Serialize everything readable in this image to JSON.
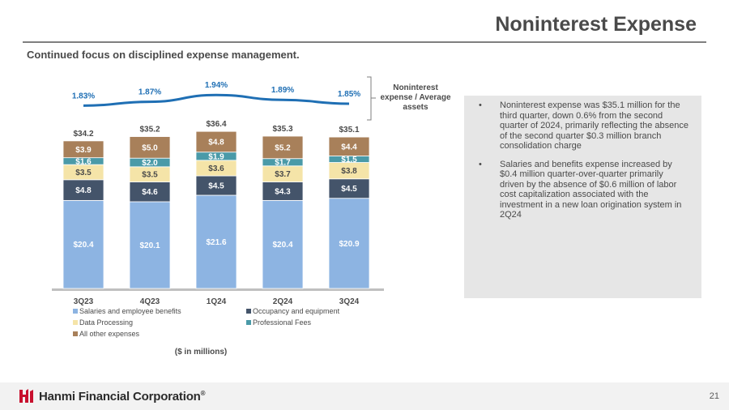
{
  "header": {
    "title": "Noninterest Expense",
    "subtitle": "Continued focus on disciplined expense management."
  },
  "chart_data": {
    "type": "bar",
    "stacked": true,
    "categories": [
      "3Q23",
      "4Q23",
      "1Q24",
      "2Q24",
      "3Q24"
    ],
    "series": [
      {
        "name": "Salaries and employee benefits",
        "values": [
          20.4,
          20.1,
          21.6,
          20.4,
          20.9
        ],
        "labels": [
          "$20.4",
          "$20.1",
          "$21.6",
          "$20.4",
          "$20.9"
        ],
        "color": "#8db4e2"
      },
      {
        "name": "Occupancy and equipment",
        "values": [
          4.8,
          4.6,
          4.5,
          4.3,
          4.5
        ],
        "labels": [
          "$4.8",
          "$4.6",
          "$4.5",
          "$4.3",
          "$4.5"
        ],
        "color": "#44546a"
      },
      {
        "name": "Data Processing",
        "values": [
          3.5,
          3.5,
          3.6,
          3.7,
          3.8
        ],
        "labels": [
          "$3.5",
          "$3.5",
          "$3.6",
          "$3.7",
          "$3.8"
        ],
        "color": "#f5e4a8"
      },
      {
        "name": "Professional Fees",
        "values": [
          1.6,
          2.0,
          1.9,
          1.7,
          1.5
        ],
        "labels": [
          "$1.6",
          "$2.0",
          "$1.9",
          "$1.7",
          "$1.5"
        ],
        "color": "#4a9aa8"
      },
      {
        "name": "All other expenses",
        "values": [
          3.9,
          5.0,
          4.8,
          5.2,
          4.4
        ],
        "labels": [
          "$3.9",
          "$5.0",
          "$4.8",
          "$5.2",
          "$4.4"
        ],
        "color": "#a8805a"
      }
    ],
    "totals": [
      "$34.2",
      "$35.2",
      "$36.4",
      "$35.3",
      "$35.1"
    ],
    "total_values": [
      34.2,
      35.2,
      36.4,
      35.3,
      35.1
    ],
    "ratio_line": {
      "name": "Noninterest expense / Average assets",
      "values": [
        1.83,
        1.87,
        1.94,
        1.89,
        1.85
      ],
      "labels": [
        "1.83%",
        "1.87%",
        "1.94%",
        "1.89%",
        "1.85%"
      ],
      "color": "#1f6fb4"
    },
    "ratio_label_lines": [
      "Noninterest",
      "expense / Average",
      "assets"
    ],
    "units_note": "($ in millions)",
    "ylim": [
      0,
      40
    ],
    "legend_position": "bottom"
  },
  "bullets": [
    "Noninterest expense was $35.1 million for the third quarter, down 0.6% from the second quarter of 2024, primarily reflecting the absence of the second quarter $0.3 million branch consolidation charge",
    "Salaries and benefits expense increased by $0.4 million quarter-over-quarter primarily driven by the absence of $0.6 million of labor cost capitalization associated with the investment in a new loan origination system in 2Q24"
  ],
  "footer": {
    "company": "Hanmi Financial Corporation",
    "trademark": "®",
    "page_number": "21",
    "brand_color": "#c8102e"
  }
}
